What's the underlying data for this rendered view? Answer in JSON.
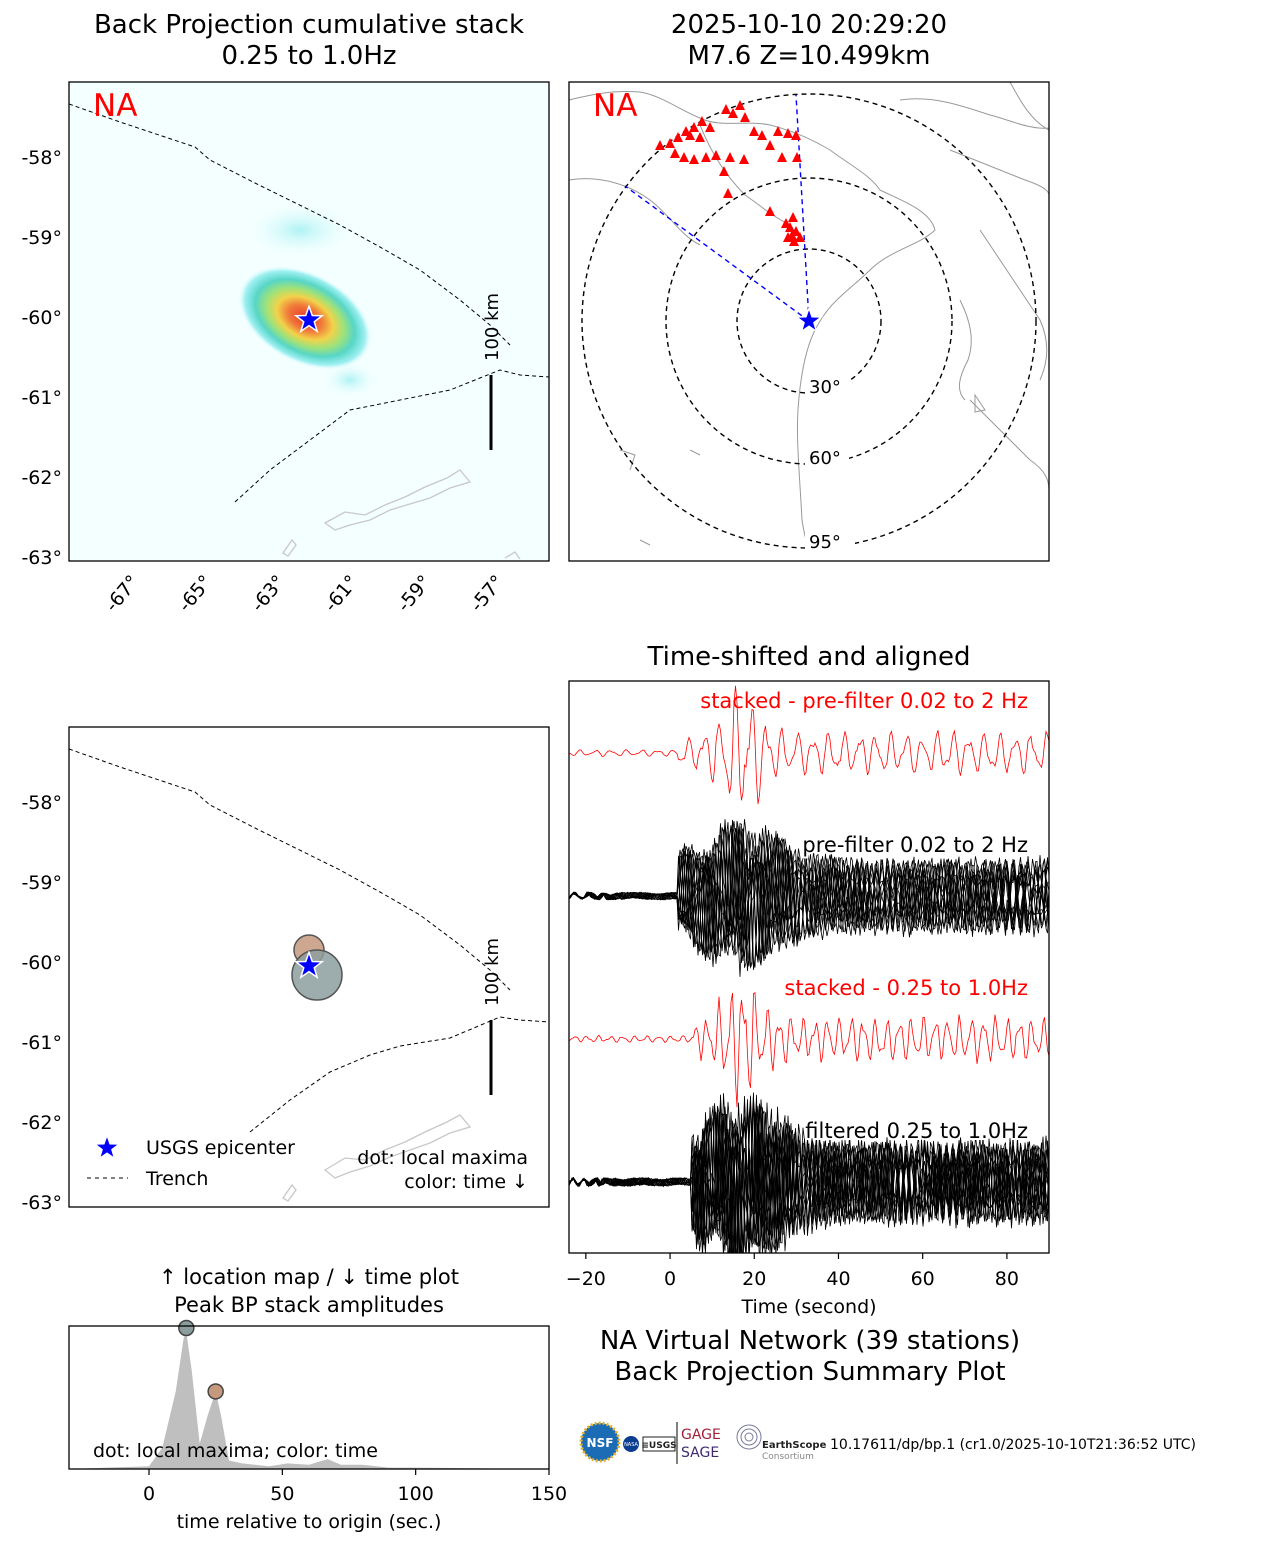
{
  "bp_map": {
    "title_line1": "Back Projection cumulative stack",
    "title_line2": "0.25 to 1.0Hz",
    "network_label": "NA",
    "scale_label": "100 km",
    "lat_ticks": [
      "-58°",
      "-59°",
      "-60°",
      "-61°",
      "-62°",
      "-63°"
    ],
    "lon_ticks": [
      "-67°",
      "-65°",
      "-63°",
      "-61°",
      "-59°",
      "-57°"
    ]
  },
  "event_map": {
    "title_line1": "2025-10-10 20:29:20",
    "title_line2": "M7.6 Z=10.499km",
    "network_label": "NA",
    "ring_labels": [
      "30°",
      "60°",
      "95°"
    ]
  },
  "location_map": {
    "scale_label": "100 km",
    "lat_ticks": [
      "-58°",
      "-59°",
      "-60°",
      "-61°",
      "-62°",
      "-63°"
    ],
    "legend": {
      "epicenter": "USGS epicenter",
      "trench": "Trench"
    },
    "note_line1": "dot: local maxima",
    "note_line2": "color: time ↓"
  },
  "waveforms": {
    "title": "Time-shifted and aligned",
    "labels": {
      "stack_pre": "stacked - pre-filter 0.02 to 2 Hz",
      "pre": "pre-filter 0.02 to 2 Hz",
      "stack_filt": "stacked - 0.25 to 1.0Hz",
      "filt": "filtered 0.25 to 1.0Hz"
    },
    "xlabel": "Time (second)",
    "xticks": [
      "−20",
      "0",
      "20",
      "40",
      "60",
      "80"
    ]
  },
  "peak_plot": {
    "title_line1": "↑ location map / ↓ time plot",
    "title_line2": "Peak BP stack amplitudes",
    "note": "dot: local maxima; color: time",
    "xlabel": "time relative to origin (sec.)",
    "xticks": [
      "0",
      "50",
      "100",
      "150"
    ]
  },
  "summary": {
    "line1": "NA Virtual Network (39 stations)",
    "line2": "Back Projection Summary Plot",
    "doi": "10.17611/dp/bp.1 (cr1.0/2025-10-10T21:36:52 UTC)",
    "logo_gage": "GAGE",
    "logo_sage": "SAGE",
    "logo_earthscope": "EarthScope",
    "logo_consortium": "Consortium",
    "logo_usgs": "≡USGS",
    "logo_nasa": "NASA"
  },
  "colors": {
    "stack_trace": "#ff0000",
    "trace": "#000000",
    "epicenter": "#0000ff",
    "station": "#ff0000",
    "path": "#0000ff",
    "peak_dot_1": "#8c9d9d",
    "peak_dot_2": "#c6987c",
    "peak_fill": "#bfbfbf"
  },
  "chart_data": [
    {
      "type": "heatmap",
      "title": "Back Projection cumulative stack 0.25 to 1.0Hz",
      "x": "longitude",
      "y": "latitude",
      "xlim": [
        -68.5,
        -55.3
      ],
      "ylim": [
        -63,
        -57.1
      ],
      "peak": {
        "lon": -62.0,
        "lat": -60.1
      },
      "epicenter": {
        "lon": -62.0,
        "lat": -60.1
      }
    },
    {
      "type": "scatter",
      "title": "2025-10-10 20:29:20 M7.6 Z=10.499km",
      "ring_distances_deg": [
        30,
        60,
        95
      ],
      "stations": 39
    },
    {
      "type": "scatter",
      "ylim": [
        -63,
        -57.1
      ],
      "maxima": [
        {
          "lon": -61.9,
          "lat": -60.2,
          "time_s": 14
        },
        {
          "lon": -62.0,
          "lat": -59.9,
          "time_s": 25
        }
      ]
    },
    {
      "type": "line",
      "title": "Time-shifted and aligned",
      "xlabel": "Time (second)",
      "xlim": [
        -24,
        90
      ],
      "series": [
        {
          "name": "stacked - pre-filter 0.02 to 2 Hz",
          "onset_s": 2
        },
        {
          "name": "pre-filter 0.02 to 2 Hz",
          "onset_s": 2
        },
        {
          "name": "stacked - 0.25 to 1.0Hz",
          "onset_s": 5
        },
        {
          "name": "filtered 0.25 to 1.0Hz",
          "onset_s": 5
        }
      ]
    },
    {
      "type": "area",
      "title": "Peak BP stack amplitudes",
      "xlabel": "time relative to origin (sec.)",
      "xlim": [
        -30,
        150
      ],
      "x": [
        -30,
        0,
        5,
        10,
        13,
        14,
        16,
        19,
        22,
        25,
        27,
        30,
        35,
        45,
        52,
        60,
        67,
        72,
        80,
        90,
        100,
        150
      ],
      "values": [
        0,
        0.02,
        0.15,
        0.55,
        0.93,
        0.97,
        0.7,
        0.18,
        0.38,
        0.55,
        0.38,
        0.06,
        0.04,
        0.02,
        0.04,
        0.03,
        0.07,
        0.03,
        0.03,
        0.01,
        0.01,
        0
      ],
      "maxima": [
        {
          "x": 14,
          "y": 1.0
        },
        {
          "x": 25,
          "y": 0.55
        }
      ]
    }
  ]
}
